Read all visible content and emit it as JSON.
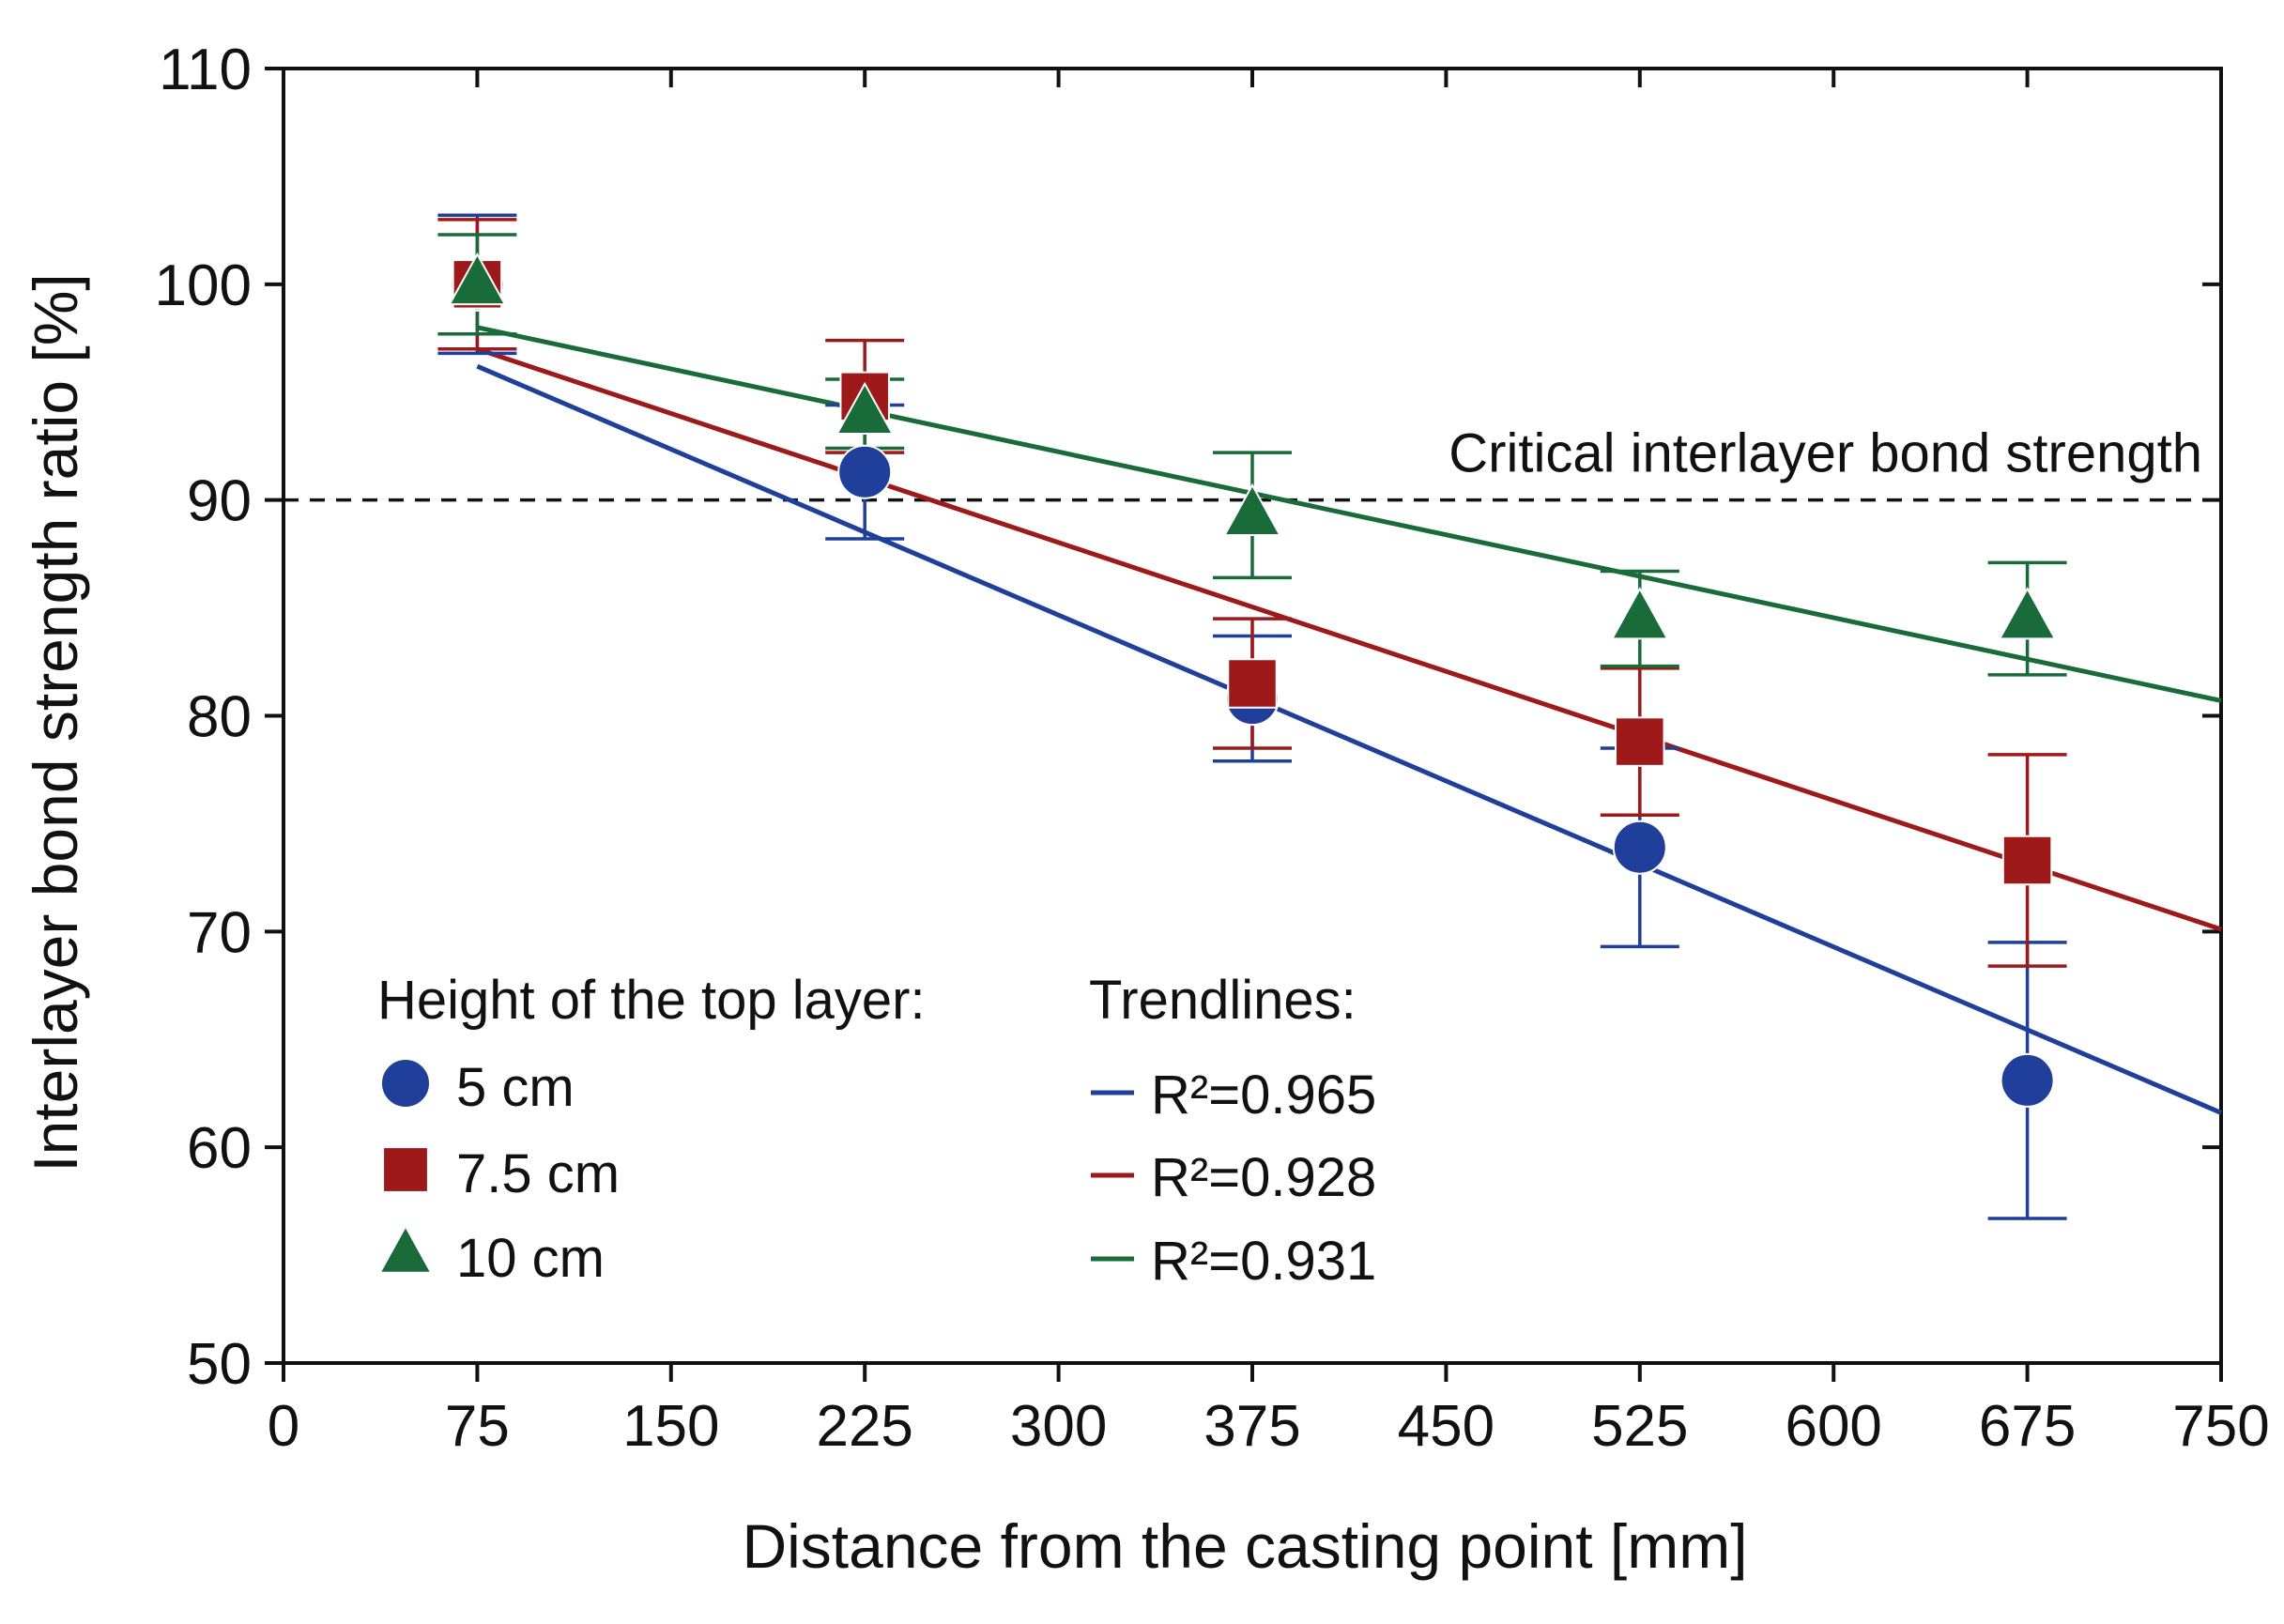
{
  "chart_data": {
    "type": "scatter",
    "title": "",
    "xlabel": "Distance from the casting point [mm]",
    "ylabel": "Interlayer bond strength ratio [%]",
    "xlim": [
      0,
      750
    ],
    "ylim": [
      50,
      110
    ],
    "x_ticks": [
      "0",
      "75",
      "150",
      "225",
      "300",
      "375",
      "450",
      "525",
      "600",
      "675",
      "750"
    ],
    "y_ticks": [
      "50",
      "60",
      "70",
      "80",
      "90",
      "100",
      "110"
    ],
    "grid": false,
    "x": [
      75,
      225,
      375,
      525,
      675
    ],
    "series": [
      {
        "name": "5 cm",
        "marker": "circle",
        "color": "#1f3f9a",
        "values": [
          100,
          91.3,
          80.8,
          73.9,
          63.1
        ],
        "error": [
          3.2,
          3.1,
          2.9,
          4.6,
          6.4
        ],
        "trendline": {
          "label": "R²=0.965",
          "start": [
            75,
            96.2
          ],
          "end": [
            750,
            61.6
          ]
        }
      },
      {
        "name": "7.5 cm",
        "marker": "square",
        "color": "#9e1a1a",
        "values": [
          100,
          94.8,
          81.5,
          78.8,
          73.3
        ],
        "error": [
          3.0,
          2.6,
          3.0,
          3.4,
          4.9
        ],
        "trendline": {
          "label": "R²=0.928",
          "start": [
            75,
            97.0
          ],
          "end": [
            750,
            70.1
          ]
        }
      },
      {
        "name": "10 cm",
        "marker": "triangle",
        "color": "#1a6b3a",
        "values": [
          100,
          94.0,
          89.3,
          84.5,
          84.5
        ],
        "error": [
          2.3,
          1.6,
          2.9,
          2.2,
          2.6
        ],
        "trendline": {
          "label": "R²=0.931",
          "start": [
            75,
            98.0
          ],
          "end": [
            750,
            80.7
          ]
        }
      }
    ],
    "reference_line": {
      "y": 90,
      "style": "dashed",
      "label": "Critical interlayer bond strength"
    },
    "legend": {
      "placement": "bottom-left",
      "markers_title": "Height of the top layer:",
      "trendlines_title": "Trendlines:"
    }
  }
}
